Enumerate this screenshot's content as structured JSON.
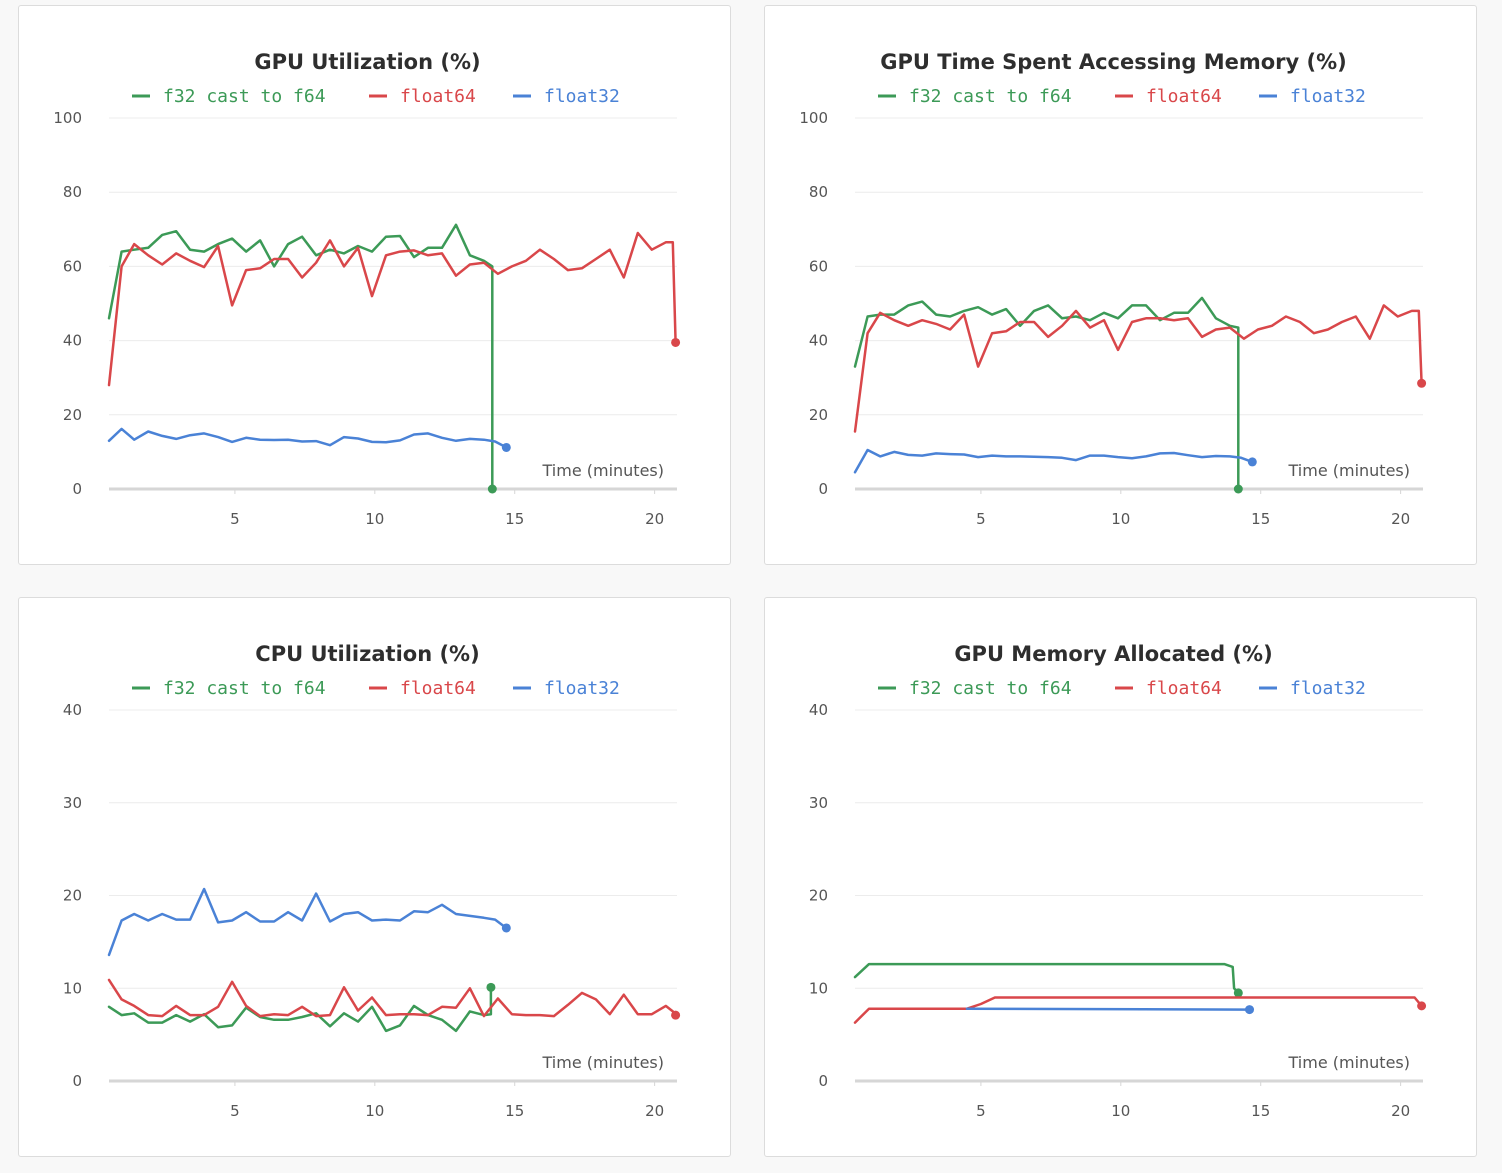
{
  "colors": {
    "f32_cast_to_f64": "#3c9a57",
    "float64": "#d9474a",
    "float32": "#4a82d6",
    "grid": "#ececec",
    "axis": "#d6d6d6"
  },
  "panels": [
    {
      "title": "GPU Utilization (%)",
      "xlabel": "Time (minutes)",
      "legend": [
        "f32 cast to f64",
        "float64",
        "float32"
      ]
    },
    {
      "title": "GPU Time Spent Accessing Memory (%)",
      "xlabel": "Time (minutes)",
      "legend": [
        "f32 cast to f64",
        "float64",
        "float32"
      ]
    },
    {
      "title": "CPU Utilization (%)",
      "xlabel": "Time (minutes)",
      "legend": [
        "f32 cast to f64",
        "float64",
        "float32"
      ]
    },
    {
      "title": "GPU Memory Allocated (%)",
      "xlabel": "Time (minutes)",
      "legend": [
        "f32 cast to f64",
        "float64",
        "float32"
      ]
    }
  ],
  "chart_data": [
    {
      "type": "line",
      "title": "GPU Utilization (%)",
      "xlabel": "Time (minutes)",
      "ylabel": "",
      "xlim": [
        0.5,
        20.8
      ],
      "ylim": [
        0,
        100
      ],
      "xticks": [
        5,
        10,
        15,
        20
      ],
      "yticks": [
        0,
        20,
        40,
        60,
        80,
        100
      ],
      "legend_position": "top",
      "grid": true,
      "series": [
        {
          "name": "f32 cast to f64",
          "x": [
            0.5,
            0.95,
            1.4,
            1.9,
            2.4,
            2.9,
            3.4,
            3.9,
            4.4,
            4.9,
            5.4,
            5.9,
            6.4,
            6.9,
            7.4,
            7.9,
            8.4,
            8.9,
            9.4,
            9.9,
            10.4,
            10.9,
            11.4,
            11.9,
            12.4,
            12.9,
            13.4,
            13.9,
            14.2,
            14.2
          ],
          "y": [
            46,
            64,
            64.5,
            65,
            68.5,
            69.5,
            64.5,
            64,
            66,
            67.5,
            64,
            67,
            60,
            66,
            68,
            63,
            64.5,
            63.5,
            65.5,
            64,
            68,
            68.2,
            62.5,
            65,
            65,
            71.2,
            63,
            61.5,
            60,
            0
          ]
        },
        {
          "name": "float64",
          "x": [
            0.5,
            0.95,
            1.4,
            1.9,
            2.4,
            2.9,
            3.4,
            3.9,
            4.4,
            4.9,
            5.4,
            5.9,
            6.4,
            6.9,
            7.4,
            7.9,
            8.4,
            8.9,
            9.4,
            9.9,
            10.4,
            10.9,
            11.4,
            11.9,
            12.4,
            12.9,
            13.4,
            13.9,
            14.4,
            14.9,
            15.4,
            15.9,
            16.4,
            16.9,
            17.4,
            17.9,
            18.4,
            18.9,
            19.4,
            19.9,
            20.4,
            20.65,
            20.75
          ],
          "y": [
            28,
            60,
            66,
            63,
            60.5,
            63.5,
            61.5,
            59.8,
            65.5,
            49.5,
            59,
            59.5,
            62,
            62,
            57,
            61,
            67,
            60,
            65,
            52,
            63,
            64,
            64.3,
            63,
            63.5,
            57.5,
            60.5,
            61,
            58,
            60,
            61.5,
            64.5,
            62,
            59,
            59.5,
            62,
            64.5,
            57,
            69,
            64.5,
            66.5,
            66.5,
            39.5
          ]
        },
        {
          "name": "float32",
          "x": [
            0.5,
            0.95,
            1.4,
            1.9,
            2.4,
            2.9,
            3.4,
            3.9,
            4.4,
            4.9,
            5.4,
            5.9,
            6.4,
            6.9,
            7.4,
            7.9,
            8.4,
            8.9,
            9.4,
            9.9,
            10.4,
            10.9,
            11.4,
            11.9,
            12.4,
            12.9,
            13.4,
            13.9,
            14.3,
            14.7
          ],
          "y": [
            13,
            16.2,
            13.3,
            15.5,
            14.3,
            13.5,
            14.5,
            15,
            14,
            12.7,
            13.8,
            13.3,
            13.2,
            13.3,
            12.8,
            12.9,
            11.8,
            14,
            13.6,
            12.7,
            12.6,
            13.1,
            14.7,
            15,
            13.8,
            13,
            13.5,
            13.3,
            12.8,
            11.2
          ]
        }
      ]
    },
    {
      "type": "line",
      "title": "GPU Time Spent Accessing Memory (%)",
      "xlabel": "Time (minutes)",
      "ylabel": "",
      "xlim": [
        0.5,
        20.8
      ],
      "ylim": [
        0,
        100
      ],
      "xticks": [
        5,
        10,
        15,
        20
      ],
      "yticks": [
        0,
        20,
        40,
        60,
        80,
        100
      ],
      "legend_position": "top",
      "grid": true,
      "series": [
        {
          "name": "f32 cast to f64",
          "x": [
            0.5,
            0.95,
            1.4,
            1.9,
            2.4,
            2.9,
            3.4,
            3.9,
            4.4,
            4.9,
            5.4,
            5.9,
            6.4,
            6.9,
            7.4,
            7.9,
            8.4,
            8.9,
            9.4,
            9.9,
            10.4,
            10.9,
            11.4,
            11.9,
            12.4,
            12.9,
            13.4,
            13.9,
            14.2,
            14.2
          ],
          "y": [
            33,
            46.5,
            47,
            47,
            49.5,
            50.5,
            47,
            46.5,
            48,
            49,
            47,
            48.5,
            44,
            48,
            49.5,
            46,
            46.5,
            45.5,
            47.5,
            46,
            49.5,
            49.5,
            45.5,
            47.5,
            47.5,
            51.5,
            46,
            44,
            43.5,
            0
          ]
        },
        {
          "name": "float64",
          "x": [
            0.5,
            0.95,
            1.4,
            1.9,
            2.4,
            2.9,
            3.4,
            3.9,
            4.4,
            4.9,
            5.4,
            5.9,
            6.4,
            6.9,
            7.4,
            7.9,
            8.4,
            8.9,
            9.4,
            9.9,
            10.4,
            10.9,
            11.4,
            11.9,
            12.4,
            12.9,
            13.4,
            13.9,
            14.4,
            14.9,
            15.4,
            15.9,
            16.4,
            16.9,
            17.4,
            17.9,
            18.4,
            18.9,
            19.4,
            19.9,
            20.4,
            20.65,
            20.75
          ],
          "y": [
            15.5,
            42,
            47.5,
            45.5,
            44,
            45.5,
            44.5,
            43,
            47,
            33,
            42,
            42.5,
            45,
            45,
            41,
            44,
            48,
            43.5,
            45.5,
            37.5,
            45,
            46,
            46,
            45.5,
            46,
            41,
            43,
            43.5,
            40.5,
            43,
            44,
            46.5,
            45,
            42,
            43,
            45,
            46.5,
            40.5,
            49.5,
            46.5,
            48,
            48,
            28.5
          ]
        },
        {
          "name": "float32",
          "x": [
            0.5,
            0.95,
            1.4,
            1.9,
            2.4,
            2.9,
            3.4,
            3.9,
            4.4,
            4.9,
            5.4,
            5.9,
            6.4,
            6.9,
            7.4,
            7.9,
            8.4,
            8.9,
            9.4,
            9.9,
            10.4,
            10.9,
            11.4,
            11.9,
            12.4,
            12.9,
            13.4,
            13.9,
            14.3,
            14.7
          ],
          "y": [
            4.5,
            10.5,
            8.8,
            10,
            9.2,
            9,
            9.6,
            9.4,
            9.3,
            8.6,
            9,
            8.8,
            8.8,
            8.7,
            8.6,
            8.4,
            7.8,
            9,
            9,
            8.6,
            8.3,
            8.8,
            9.6,
            9.7,
            9.1,
            8.6,
            8.9,
            8.8,
            8.4,
            7.3
          ]
        }
      ]
    },
    {
      "type": "line",
      "title": "CPU Utilization (%)",
      "xlabel": "Time (minutes)",
      "ylabel": "",
      "xlim": [
        0.5,
        20.8
      ],
      "ylim": [
        0,
        40
      ],
      "xticks": [
        5,
        10,
        15,
        20
      ],
      "yticks": [
        0,
        10,
        20,
        30,
        40
      ],
      "legend_position": "top",
      "grid": true,
      "series": [
        {
          "name": "f32 cast to f64",
          "x": [
            0.5,
            0.95,
            1.4,
            1.9,
            2.4,
            2.9,
            3.4,
            3.9,
            4.4,
            4.9,
            5.4,
            5.9,
            6.4,
            6.9,
            7.4,
            7.9,
            8.4,
            8.9,
            9.4,
            9.9,
            10.4,
            10.9,
            11.4,
            11.9,
            12.4,
            12.9,
            13.4,
            13.9,
            14.15,
            14.15
          ],
          "y": [
            8,
            7.1,
            7.3,
            6.3,
            6.3,
            7.1,
            6.4,
            7.2,
            5.8,
            6,
            7.9,
            6.9,
            6.6,
            6.6,
            6.9,
            7.3,
            5.9,
            7.3,
            6.4,
            8,
            5.4,
            6,
            8.1,
            7.1,
            6.6,
            5.4,
            7.5,
            7.1,
            7.2,
            10.1
          ]
        },
        {
          "name": "float64",
          "x": [
            0.5,
            0.95,
            1.4,
            1.9,
            2.4,
            2.9,
            3.4,
            3.9,
            4.4,
            4.9,
            5.4,
            5.9,
            6.4,
            6.9,
            7.4,
            7.9,
            8.4,
            8.9,
            9.4,
            9.9,
            10.4,
            10.9,
            11.4,
            11.9,
            12.4,
            12.9,
            13.4,
            13.9,
            14.4,
            14.9,
            15.4,
            15.9,
            16.4,
            16.9,
            17.4,
            17.9,
            18.4,
            18.9,
            19.4,
            19.9,
            20.4,
            20.65,
            20.75
          ],
          "y": [
            10.9,
            8.8,
            8.1,
            7.1,
            7,
            8.1,
            7.1,
            7.1,
            8,
            10.7,
            8.1,
            7,
            7.2,
            7.1,
            8,
            7,
            7.1,
            10.1,
            7.6,
            9,
            7.1,
            7.2,
            7.2,
            7.1,
            8,
            7.9,
            10,
            7,
            8.9,
            7.2,
            7.1,
            7.1,
            7,
            8.2,
            9.5,
            8.8,
            7.2,
            9.3,
            7.2,
            7.2,
            8.1,
            7.5,
            7.1
          ]
        },
        {
          "name": "float32",
          "x": [
            0.5,
            0.95,
            1.4,
            1.9,
            2.4,
            2.9,
            3.4,
            3.9,
            4.4,
            4.9,
            5.4,
            5.9,
            6.4,
            6.9,
            7.4,
            7.9,
            8.4,
            8.9,
            9.4,
            9.9,
            10.4,
            10.9,
            11.4,
            11.9,
            12.4,
            12.9,
            13.4,
            13.9,
            14.3,
            14.7
          ],
          "y": [
            13.6,
            17.3,
            18,
            17.3,
            18,
            17.4,
            17.4,
            20.7,
            17.1,
            17.3,
            18.2,
            17.2,
            17.2,
            18.2,
            17.3,
            20.2,
            17.2,
            18,
            18.2,
            17.3,
            17.4,
            17.3,
            18.3,
            18.2,
            19,
            18,
            17.8,
            17.6,
            17.4,
            16.5
          ]
        }
      ]
    },
    {
      "type": "line",
      "title": "GPU Memory Allocated (%)",
      "xlabel": "Time (minutes)",
      "ylabel": "",
      "xlim": [
        0.5,
        20.8
      ],
      "ylim": [
        0,
        40
      ],
      "xticks": [
        5,
        10,
        15,
        20
      ],
      "yticks": [
        0,
        10,
        20,
        30,
        40
      ],
      "legend_position": "top",
      "grid": true,
      "series": [
        {
          "name": "f32 cast to f64",
          "x": [
            0.5,
            1,
            13.7,
            14.0,
            14.05,
            14.2
          ],
          "y": [
            11.2,
            12.6,
            12.6,
            12.3,
            10,
            9.5
          ]
        },
        {
          "name": "float64",
          "x": [
            0.5,
            1,
            4.5,
            5,
            5.5,
            20.5,
            20.75
          ],
          "y": [
            6.3,
            7.8,
            7.8,
            8.3,
            9,
            9,
            8.1
          ]
        },
        {
          "name": "float32",
          "x": [
            4.5,
            14.6
          ],
          "y": [
            7.8,
            7.7
          ]
        }
      ]
    }
  ]
}
